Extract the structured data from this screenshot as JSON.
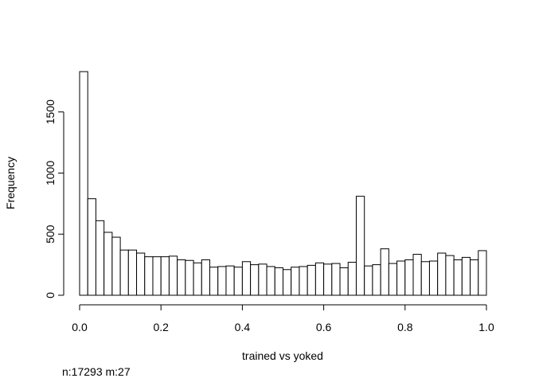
{
  "chart_data": {
    "type": "bar",
    "subtype": "histogram",
    "title": "",
    "xlabel": "trained vs yoked",
    "ylabel": "Frequency",
    "xlim": [
      0,
      1
    ],
    "ylim": [
      0,
      1830
    ],
    "x_ticks": [
      "0.0",
      "0.2",
      "0.4",
      "0.6",
      "0.8",
      "1.0"
    ],
    "y_ticks": [
      "0",
      "500",
      "1000",
      "1500"
    ],
    "bin_width": 0.02,
    "bin_start": 0,
    "counts": [
      1830,
      790,
      610,
      515,
      475,
      370,
      370,
      345,
      315,
      315,
      315,
      320,
      290,
      285,
      265,
      290,
      230,
      235,
      240,
      230,
      275,
      250,
      255,
      235,
      225,
      210,
      230,
      235,
      245,
      265,
      255,
      260,
      225,
      270,
      810,
      240,
      250,
      380,
      260,
      280,
      290,
      335,
      275,
      280,
      345,
      325,
      290,
      310,
      290,
      365
    ],
    "grid": false,
    "legend": "none"
  },
  "footnote": "n:17293 m:27"
}
